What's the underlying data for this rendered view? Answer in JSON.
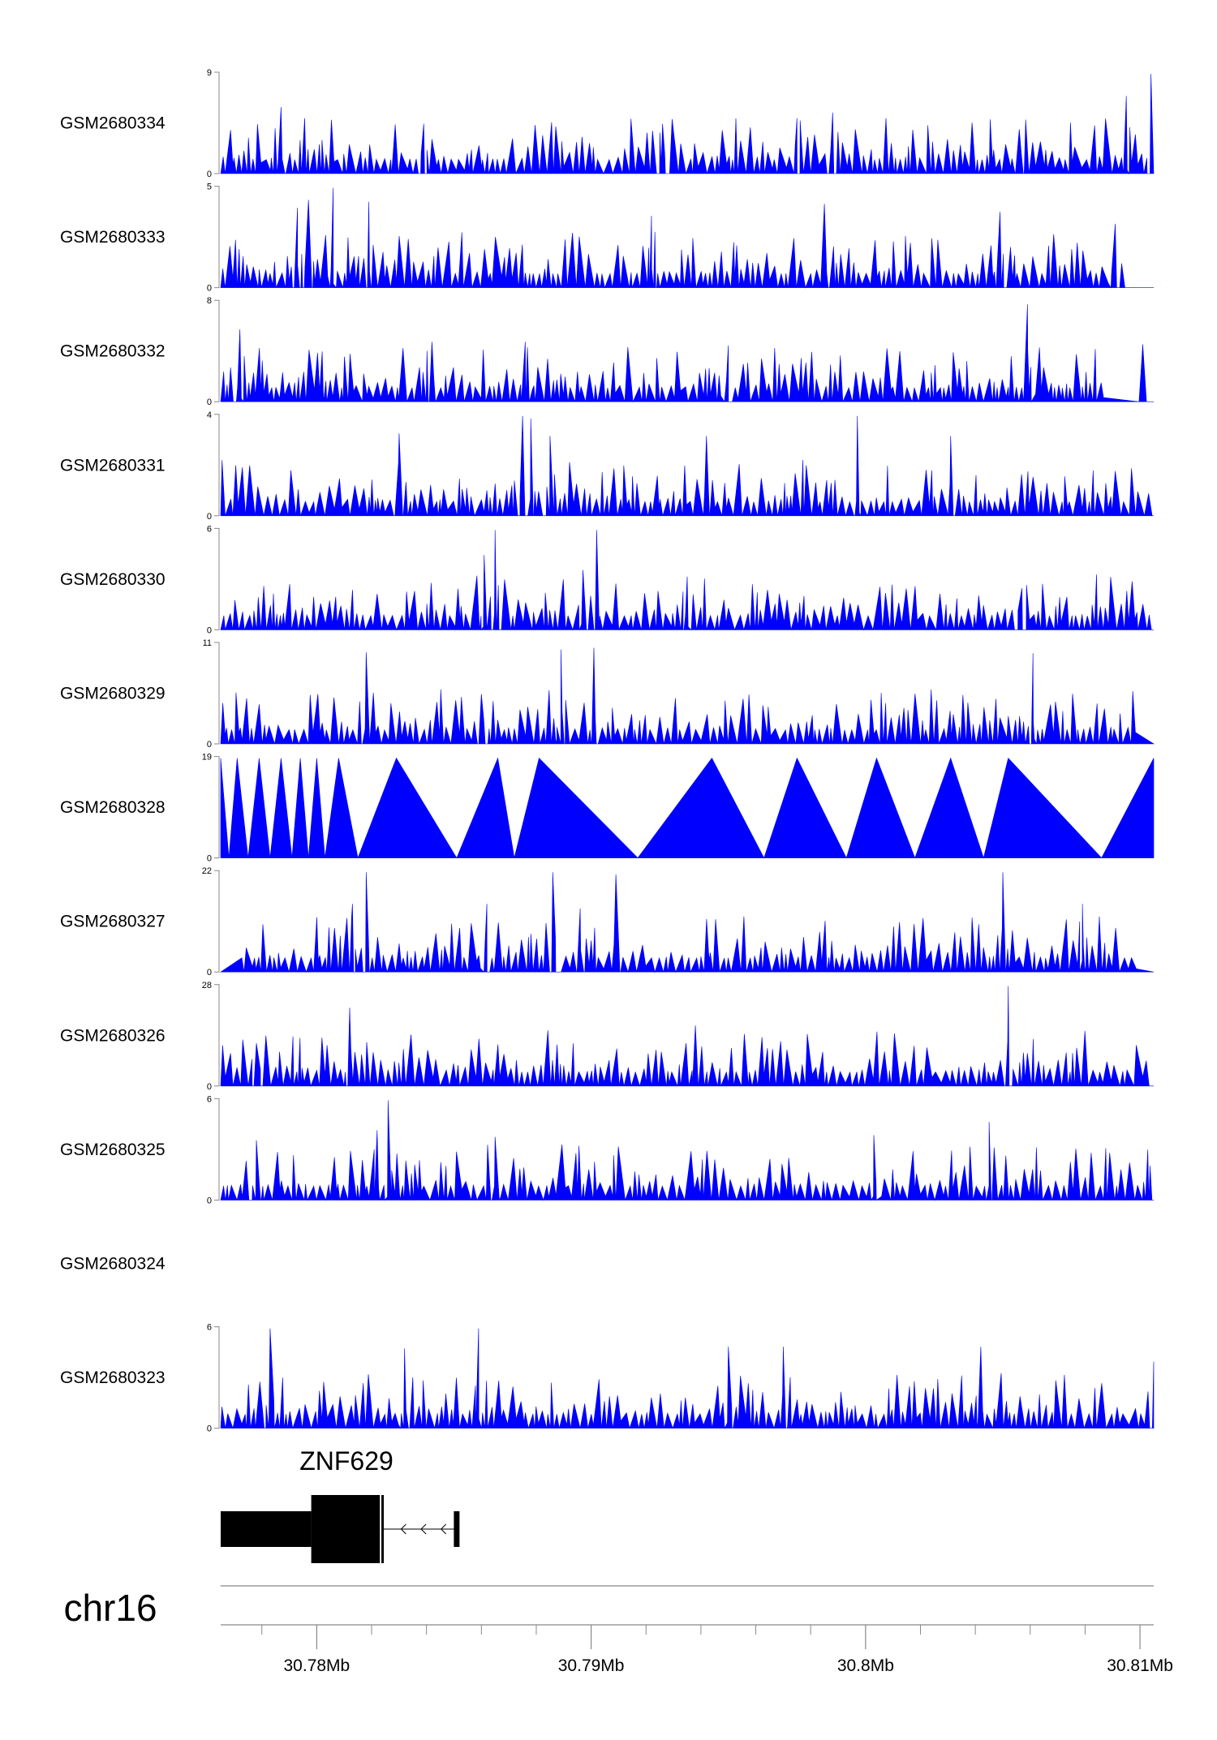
{
  "chart_data": {
    "type": "area",
    "title": "",
    "chromosome": "chr16",
    "xunit": "Mb",
    "xlim": [
      30.7765,
      30.8105
    ],
    "x_ticks_major": [
      30.78,
      30.79,
      30.8,
      30.81
    ],
    "x_tick_labels": [
      "30.78Mb",
      "30.79Mb",
      "30.8Mb",
      "30.81Mb"
    ],
    "x_ticks_minor": [
      30.778,
      30.782,
      30.784,
      30.786,
      30.788,
      30.792,
      30.794,
      30.796,
      30.798,
      30.802,
      30.804,
      30.806,
      30.808
    ],
    "tracks": [
      {
        "name": "GSM2680334",
        "ymax": 9,
        "y_tick_labels": [
          "0",
          "9"
        ],
        "seed": 11,
        "peaks": [
          [
            30.7787,
            6
          ],
          [
            30.7839,
            4.5
          ],
          [
            30.7926,
            4.5
          ],
          [
            30.7975,
            5
          ],
          [
            30.7988,
            5.5
          ],
          [
            30.8056,
            4
          ],
          [
            30.8095,
            7
          ],
          [
            30.8104,
            9
          ]
        ]
      },
      {
        "name": "GSM2680333",
        "ymax": 5,
        "y_tick_labels": [
          "0",
          "5"
        ],
        "seed": 23,
        "peaks": [
          [
            30.7806,
            5
          ],
          [
            30.7797,
            4.4
          ],
          [
            30.7793,
            4.0
          ],
          [
            30.7819,
            4.3
          ],
          [
            30.7985,
            4.2
          ],
          [
            30.7922,
            3.6
          ],
          [
            30.8049,
            3.8
          ],
          [
            30.8091,
            3.2
          ]
        ]
      },
      {
        "name": "GSM2680332",
        "ymax": 8,
        "y_tick_labels": [
          "0",
          "8"
        ],
        "seed": 37,
        "peaks": [
          [
            30.7772,
            5.8
          ],
          [
            30.8059,
            7.8
          ],
          [
            30.8101,
            4.6
          ],
          [
            30.7876,
            4.8
          ],
          [
            30.7842,
            4.8
          ],
          [
            30.795,
            4.5
          ]
        ]
      },
      {
        "name": "GSM2680331",
        "ymax": 4,
        "y_tick_labels": [
          "0",
          "4"
        ],
        "seed": 41,
        "peaks": [
          [
            30.7875,
            4
          ],
          [
            30.7878,
            3.9
          ],
          [
            30.7885,
            3.2
          ],
          [
            30.7997,
            4
          ],
          [
            30.7942,
            3.2
          ],
          [
            30.8031,
            3.2
          ],
          [
            30.783,
            3.3
          ]
        ]
      },
      {
        "name": "GSM2680330",
        "ymax": 6,
        "y_tick_labels": [
          "0",
          "6"
        ],
        "seed": 53,
        "peaks": [
          [
            30.7865,
            6
          ],
          [
            30.7861,
            4.5
          ],
          [
            30.7902,
            6
          ],
          [
            30.7897,
            3.6
          ],
          [
            30.7935,
            3.2
          ],
          [
            30.8057,
            2.5
          ]
        ]
      },
      {
        "name": "GSM2680329",
        "ymax": 11,
        "y_tick_labels": [
          "0",
          "11"
        ],
        "seed": 61,
        "peaks": [
          [
            30.7818,
            10.1
          ],
          [
            30.7889,
            10.4
          ],
          [
            30.7901,
            10.6
          ],
          [
            30.8061,
            10
          ],
          [
            30.786,
            5.5
          ]
        ]
      },
      {
        "name": "GSM2680328",
        "ymax": 19,
        "y_tick_labels": [
          "0",
          "19"
        ],
        "mode": "polyline",
        "points": [
          [
            30.7765,
            19
          ],
          [
            30.7768,
            0
          ],
          [
            30.7771,
            19
          ],
          [
            30.7775,
            0
          ],
          [
            30.7779,
            19
          ],
          [
            30.7783,
            0
          ],
          [
            30.7787,
            19
          ],
          [
            30.7791,
            0
          ],
          [
            30.7794,
            19
          ],
          [
            30.7797,
            0
          ],
          [
            30.78,
            19
          ],
          [
            30.7803,
            0
          ],
          [
            30.7808,
            19
          ],
          [
            30.7815,
            0
          ],
          [
            30.7829,
            19
          ],
          [
            30.7851,
            0
          ],
          [
            30.7866,
            19
          ],
          [
            30.7872,
            0
          ],
          [
            30.7881,
            19
          ],
          [
            30.7917,
            0
          ],
          [
            30.7944,
            19
          ],
          [
            30.7963,
            0
          ],
          [
            30.7975,
            19
          ],
          [
            30.7993,
            0
          ],
          [
            30.8004,
            19
          ],
          [
            30.8018,
            0
          ],
          [
            30.8031,
            19
          ],
          [
            30.8043,
            0
          ],
          [
            30.8052,
            19
          ],
          [
            30.8086,
            0
          ],
          [
            30.8105,
            19
          ]
        ]
      },
      {
        "name": "GSM2680327",
        "ymax": 22,
        "y_tick_labels": [
          "0",
          "22"
        ],
        "seed": 79,
        "peaks": [
          [
            30.7818,
            22
          ],
          [
            30.7813,
            15
          ],
          [
            30.7886,
            22
          ],
          [
            30.7909,
            21.5
          ],
          [
            30.805,
            22
          ],
          [
            30.8079,
            15
          ],
          [
            30.7862,
            15
          ],
          [
            30.7896,
            14
          ]
        ],
        "gaps": [
          [
            30.7765,
            30.7771
          ],
          [
            30.8099,
            30.8105
          ]
        ]
      },
      {
        "name": "GSM2680326",
        "ymax": 28,
        "y_tick_labels": [
          "0",
          "28"
        ],
        "seed": 83,
        "peaks": [
          [
            30.7812,
            22
          ],
          [
            30.8052,
            28
          ],
          [
            30.7938,
            17
          ],
          [
            30.7778,
            12
          ]
        ]
      },
      {
        "name": "GSM2680325",
        "ymax": 6,
        "y_tick_labels": [
          "0",
          "6"
        ],
        "seed": 97,
        "peaks": [
          [
            30.7826,
            6
          ],
          [
            30.7822,
            4.2
          ],
          [
            30.8045,
            4.7
          ],
          [
            30.8003,
            3.9
          ],
          [
            30.7778,
            3.6
          ],
          [
            30.7865,
            3.8
          ]
        ]
      },
      {
        "name": "GSM2680324",
        "empty": true
      },
      {
        "name": "GSM2680323",
        "ymax": 6,
        "y_tick_labels": [
          "0",
          "6"
        ],
        "seed": 101,
        "peaks": [
          [
            30.7783,
            6
          ],
          [
            30.7859,
            6
          ],
          [
            30.7832,
            4.8
          ],
          [
            30.795,
            4.9
          ],
          [
            30.797,
            4.9
          ],
          [
            30.8042,
            4.9
          ],
          [
            30.8105,
            4.0
          ]
        ]
      }
    ],
    "gene": {
      "name": "ZNF629",
      "strand": "-",
      "thick": [
        [
          30.7765,
          30.7798
        ],
        [
          30.7798,
          30.7823
        ]
      ],
      "extra_exons": [
        30.7824,
        30.7851
      ],
      "intron": [
        30.7824,
        30.7851
      ]
    }
  },
  "colors": {
    "signal_fill": "#0000ff",
    "axis": "#888888",
    "gene": "#000000"
  }
}
